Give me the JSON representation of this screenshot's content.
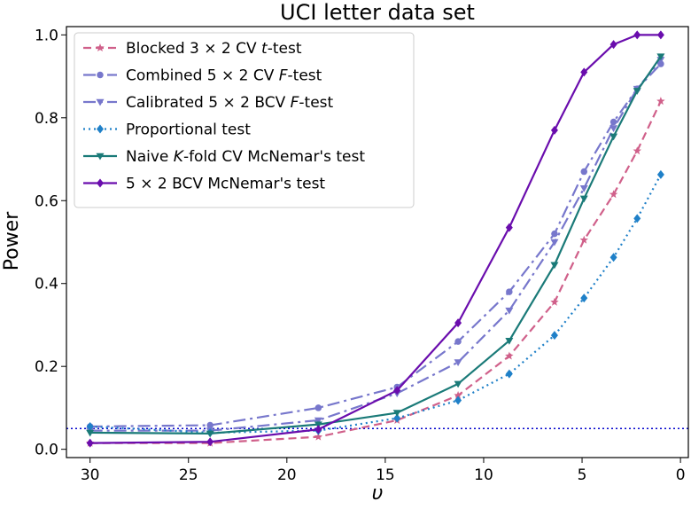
{
  "chart_data": {
    "type": "line",
    "title": "UCI letter data set",
    "xlabel": "υ",
    "ylabel": "Power",
    "xlim": [
      31.2,
      -0.4
    ],
    "ylim": [
      -0.02,
      1.02
    ],
    "x_ticks": [
      30,
      25,
      20,
      15,
      10,
      5,
      0
    ],
    "x_tick_labels": [
      "30",
      "25",
      "20",
      "15",
      "10",
      "5",
      "0"
    ],
    "y_ticks": [
      0.0,
      0.2,
      0.4,
      0.6,
      0.8,
      1.0
    ],
    "y_tick_labels": [
      "0.0",
      "0.2",
      "0.4",
      "0.6",
      "0.8",
      "1.0"
    ],
    "grid": false,
    "legend_position": "top-left",
    "reference_line": {
      "y": 0.05,
      "color": "#0000cc",
      "style": "dotted"
    },
    "series": [
      {
        "name": "Blocked 3 × 2 CV t-test",
        "legend_parts": [
          [
            "Blocked 3 × 2 CV ",
            ""
          ],
          [
            "t",
            "italic"
          ],
          [
            "-test",
            ""
          ]
        ],
        "color": "#d0608a",
        "dash": "9,5",
        "marker": "star",
        "x": [
          30,
          23.9,
          18.4,
          14.4,
          11.3,
          8.7,
          6.4,
          4.9,
          3.4,
          2.2,
          1.0
        ],
        "y": [
          0.015,
          0.015,
          0.03,
          0.07,
          0.13,
          0.225,
          0.355,
          0.505,
          0.615,
          0.72,
          0.84
        ]
      },
      {
        "name": "Combined 5 × 2 CV F-test",
        "legend_parts": [
          [
            "Combined 5 × 2 CV ",
            ""
          ],
          [
            "F",
            "italic"
          ],
          [
            "-test",
            ""
          ]
        ],
        "color": "#7777cc",
        "dash": "14,5,3,5",
        "marker": "circle",
        "x": [
          30,
          23.9,
          18.4,
          14.4,
          11.3,
          8.7,
          6.4,
          4.9,
          3.4,
          2.2,
          1.0
        ],
        "y": [
          0.055,
          0.058,
          0.1,
          0.15,
          0.26,
          0.38,
          0.52,
          0.67,
          0.79,
          0.87,
          0.93
        ]
      },
      {
        "name": "Calibrated 5 × 2 BCV F-test",
        "legend_parts": [
          [
            "Calibrated 5 × 2 BCV ",
            ""
          ],
          [
            "F",
            "italic"
          ],
          [
            "-test",
            ""
          ]
        ],
        "color": "#7777cc",
        "dash": "14,5,3,5",
        "marker": "triangle-down",
        "x": [
          30,
          23.9,
          18.4,
          14.4,
          11.3,
          8.7,
          6.4,
          4.9,
          3.4,
          2.2,
          1.0
        ],
        "y": [
          0.045,
          0.045,
          0.07,
          0.135,
          0.21,
          0.335,
          0.5,
          0.63,
          0.775,
          0.87,
          0.94
        ]
      },
      {
        "name": "Proportional test",
        "legend_parts": [
          [
            "Proportional test",
            ""
          ]
        ],
        "color": "#1f80c8",
        "dash": "2,4",
        "marker": "diamond",
        "x": [
          30,
          23.9,
          18.4,
          14.4,
          11.3,
          8.7,
          6.4,
          4.9,
          3.4,
          2.2,
          1.0
        ],
        "y": [
          0.055,
          0.04,
          0.045,
          0.075,
          0.118,
          0.182,
          0.275,
          0.365,
          0.463,
          0.557,
          0.663
        ]
      },
      {
        "name": "Naive K-fold CV McNemar's test",
        "legend_parts": [
          [
            "Naive ",
            ""
          ],
          [
            "K",
            "italic"
          ],
          [
            "-fold CV McNemar's test",
            ""
          ]
        ],
        "color": "#1a7a78",
        "dash": "",
        "marker": "triangle-down",
        "x": [
          30,
          23.9,
          18.4,
          14.4,
          11.3,
          8.7,
          6.4,
          4.9,
          3.4,
          2.2,
          1.0
        ],
        "y": [
          0.04,
          0.038,
          0.06,
          0.088,
          0.158,
          0.262,
          0.445,
          0.605,
          0.755,
          0.865,
          0.948
        ]
      },
      {
        "name": "5 × 2 BCV McNemar's test",
        "legend_parts": [
          [
            "5 × 2 BCV McNemar's test",
            ""
          ]
        ],
        "color": "#6a0dad",
        "dash": "",
        "marker": "diamond",
        "x": [
          30,
          23.9,
          18.4,
          14.4,
          11.3,
          8.7,
          6.4,
          4.9,
          3.4,
          2.2,
          1.0
        ],
        "y": [
          0.015,
          0.018,
          0.048,
          0.142,
          0.305,
          0.535,
          0.77,
          0.91,
          0.977,
          1.0,
          1.0
        ]
      }
    ]
  }
}
